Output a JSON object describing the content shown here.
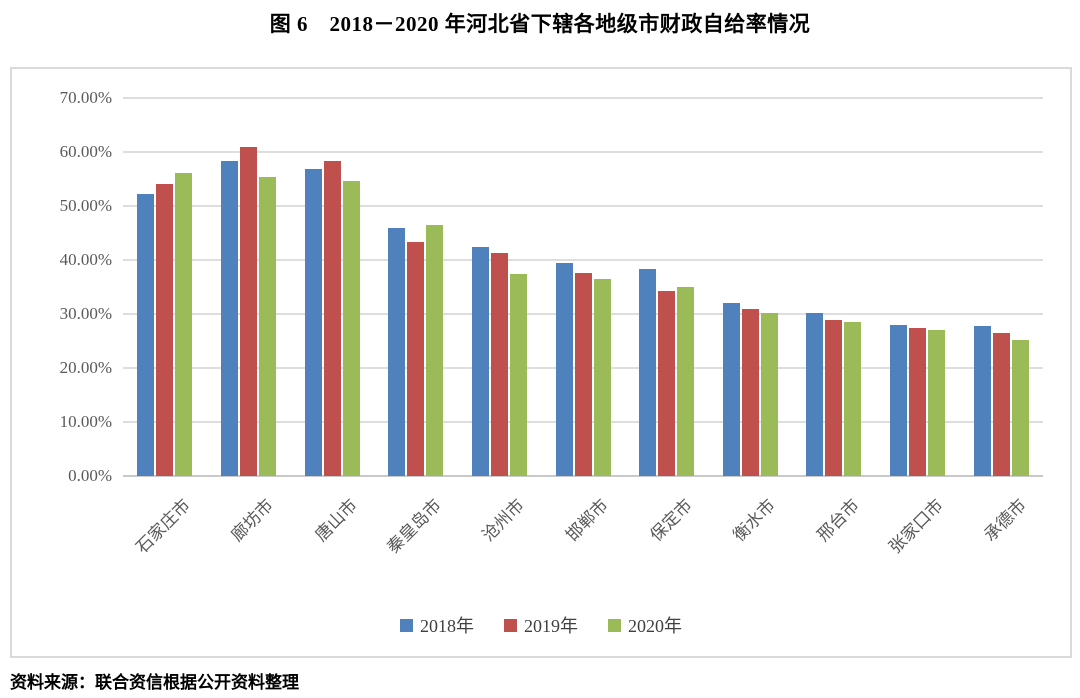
{
  "chart_data": {
    "type": "bar",
    "title": "图 6　2018－2020 年河北省下辖各地级市财政自给率情况",
    "categories": [
      "石家庄市",
      "廊坊市",
      "唐山市",
      "秦皇岛市",
      "沧州市",
      "邯郸市",
      "保定市",
      "衡水市",
      "邢台市",
      "张家口市",
      "承德市"
    ],
    "series": [
      {
        "name": "2018年",
        "color": "#4F81BD",
        "values": [
          52.2,
          58.4,
          56.9,
          45.9,
          42.4,
          39.4,
          38.3,
          32.1,
          30.2,
          27.9,
          27.8
        ]
      },
      {
        "name": "2019年",
        "color": "#C0504D",
        "values": [
          54.0,
          60.9,
          58.4,
          43.3,
          41.3,
          37.6,
          34.2,
          30.9,
          28.9,
          27.4,
          26.5
        ]
      },
      {
        "name": "2020年",
        "color": "#9BBB59",
        "values": [
          56.2,
          55.3,
          54.7,
          46.5,
          37.4,
          36.4,
          35.0,
          30.1,
          28.6,
          27.0,
          25.2
        ]
      }
    ],
    "ylim": [
      0,
      70
    ],
    "ytick_step": 10,
    "ytick_labels": [
      "0.00%",
      "10.00%",
      "20.00%",
      "30.00%",
      "40.00%",
      "50.00%",
      "60.00%",
      "70.00%"
    ],
    "xlabel": "",
    "ylabel": "",
    "grid": "horizontal",
    "legend_position": "bottom"
  },
  "source_note": "资料来源：联合资信根据公开资料整理",
  "colors": {
    "gridline": "#dedede",
    "axis_line": "#c9c9c9",
    "tick_text": "#595959",
    "frame_border": "#d9d9d9"
  }
}
